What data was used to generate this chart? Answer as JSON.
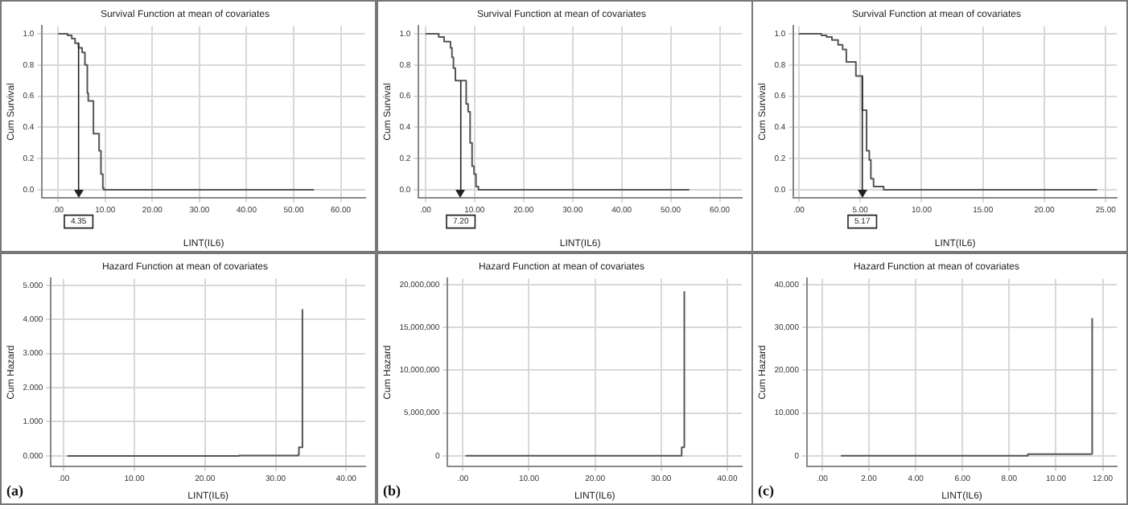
{
  "chart_data": [
    {
      "type": "step",
      "title": "Survival Function at mean of covariates",
      "xlabel": "LINT(IL6)",
      "ylabel": "Cum Survival",
      "grid": true,
      "series": [
        {
          "color": "#555555",
          "x": [
            0,
            1.1,
            2.0,
            2.9,
            3.6,
            4.35,
            5.1,
            5.7,
            6.2,
            6.4,
            7.5,
            8.7,
            9.1,
            9.5,
            9.7,
            54.3
          ],
          "values": [
            1.0,
            1.0,
            0.99,
            0.97,
            0.94,
            0.91,
            0.88,
            0.8,
            0.62,
            0.57,
            0.36,
            0.25,
            0.1,
            0.01,
            0.0,
            0.0
          ]
        }
      ],
      "xlim": [
        -3.4,
        65.2
      ],
      "xticks": [
        {
          "value": 0,
          "label": ".00"
        },
        {
          "value": 10,
          "label": "10.00"
        },
        {
          "value": 20,
          "label": "20.00"
        },
        {
          "value": 30,
          "label": "30.00"
        },
        {
          "value": 40,
          "label": "40.00"
        },
        {
          "value": 50,
          "label": "50.00"
        },
        {
          "value": 60,
          "label": "60.00"
        }
      ],
      "ylim": [
        -0.05,
        1.05
      ],
      "yticks": [
        {
          "value": 0,
          "label": "0.0"
        },
        {
          "value": 0.2,
          "label": "0.2"
        },
        {
          "value": 0.4,
          "label": "0.4"
        },
        {
          "value": 0.6,
          "label": "0.6"
        },
        {
          "value": 0.8,
          "label": "0.8"
        },
        {
          "value": 1,
          "label": "1.0"
        }
      ],
      "ref_lines": [
        {
          "axis": "x",
          "value": 4.35,
          "label": "4.35",
          "color": "#222222"
        }
      ]
    },
    {
      "type": "step",
      "title": "Survival Function at mean of covariates",
      "xlabel": "LINT(IL6)",
      "ylabel": "Cum Survival",
      "grid": true,
      "series": [
        {
          "color": "#555555",
          "x": [
            0,
            1.6,
            2.7,
            3.8,
            5.1,
            5.4,
            5.7,
            6.1,
            8.3,
            8.7,
            9.1,
            9.5,
            9.9,
            10.3,
            10.8,
            53.8
          ],
          "values": [
            1.0,
            1.0,
            0.98,
            0.95,
            0.91,
            0.85,
            0.78,
            0.7,
            0.55,
            0.5,
            0.3,
            0.15,
            0.1,
            0.02,
            0.0,
            0.0
          ]
        }
      ],
      "xlim": [
        -1.4,
        64.5
      ],
      "xticks": [
        {
          "value": 0,
          "label": ".00"
        },
        {
          "value": 10,
          "label": "10.00"
        },
        {
          "value": 20,
          "label": "20.00"
        },
        {
          "value": 30,
          "label": "30.00"
        },
        {
          "value": 40,
          "label": "40.00"
        },
        {
          "value": 50,
          "label": "50.00"
        },
        {
          "value": 60,
          "label": "60.00"
        }
      ],
      "ylim": [
        -0.05,
        1.05
      ],
      "yticks": [
        {
          "value": 0,
          "label": "0.0"
        },
        {
          "value": 0.2,
          "label": "0.2"
        },
        {
          "value": 0.4,
          "label": "0.4"
        },
        {
          "value": 0.6,
          "label": "0.6"
        },
        {
          "value": 0.8,
          "label": "0.8"
        },
        {
          "value": 1,
          "label": "1.0"
        }
      ],
      "ref_lines": [
        {
          "axis": "x",
          "value": 7.2,
          "label": "7.20",
          "color": "#222222"
        }
      ]
    },
    {
      "type": "step",
      "title": "Survival Function at mean of covariates",
      "xlabel": "LINT(IL6)",
      "ylabel": "Cum Survival",
      "grid": true,
      "series": [
        {
          "color": "#555555",
          "x": [
            0,
            0.96,
            1.83,
            2.26,
            2.7,
            3.2,
            3.57,
            3.87,
            4.65,
            5.17,
            5.52,
            5.74,
            5.87,
            6.09,
            6.91,
            24.3
          ],
          "values": [
            1.0,
            1.0,
            0.99,
            0.98,
            0.96,
            0.93,
            0.9,
            0.82,
            0.73,
            0.51,
            0.25,
            0.19,
            0.07,
            0.02,
            0.0,
            0.0
          ]
        }
      ],
      "xlim": [
        -0.43,
        25.9
      ],
      "xticks": [
        {
          "value": 0,
          "label": ".00"
        },
        {
          "value": 5,
          "label": "5.00"
        },
        {
          "value": 10,
          "label": "10.00"
        },
        {
          "value": 15,
          "label": "15.00"
        },
        {
          "value": 20,
          "label": "20.00"
        },
        {
          "value": 25,
          "label": "25.00"
        }
      ],
      "ylim": [
        -0.05,
        1.05
      ],
      "yticks": [
        {
          "value": 0,
          "label": "0.0"
        },
        {
          "value": 0.2,
          "label": "0.2"
        },
        {
          "value": 0.4,
          "label": "0.4"
        },
        {
          "value": 0.6,
          "label": "0.6"
        },
        {
          "value": 0.8,
          "label": "0.8"
        },
        {
          "value": 1,
          "label": "1.0"
        }
      ],
      "ref_lines": [
        {
          "axis": "x",
          "value": 5.17,
          "label": "5.17",
          "color": "#222222"
        }
      ]
    },
    {
      "type": "step",
      "title": "Hazard Function at mean of covariates",
      "xlabel": "LINT(IL6)",
      "ylabel": "Cum Hazard",
      "grid": true,
      "series": [
        {
          "color": "#555555",
          "x": [
            0.5,
            24.8,
            33.2,
            33.3,
            33.8
          ],
          "values": [
            0,
            0.01,
            0.03,
            0.25,
            4.3
          ]
        }
      ],
      "xlim": [
        -1.8,
        42.7
      ],
      "xticks": [
        {
          "value": 0,
          "label": ".00"
        },
        {
          "value": 10,
          "label": "10.00"
        },
        {
          "value": 20,
          "label": "20.00"
        },
        {
          "value": 30,
          "label": "30.00"
        },
        {
          "value": 40,
          "label": "40.00"
        }
      ],
      "ylim": [
        -0.3,
        5.2
      ],
      "yticks": [
        {
          "value": 0,
          "label": "0.000"
        },
        {
          "value": 1,
          "label": "1.000"
        },
        {
          "value": 2,
          "label": "2.000"
        },
        {
          "value": 3,
          "label": "3.000"
        },
        {
          "value": 4,
          "label": "4.000"
        },
        {
          "value": 5,
          "label": "5.000"
        }
      ],
      "annotations": [
        "(a)"
      ]
    },
    {
      "type": "step",
      "title": "Hazard Function at mean of covariates",
      "xlabel": "LINT(IL6)",
      "ylabel": "Cum Hazard",
      "grid": true,
      "series": [
        {
          "color": "#555555",
          "x": [
            0.4,
            24,
            33.1,
            33.5
          ],
          "values": [
            0,
            0,
            1000000,
            19200000
          ]
        }
      ],
      "xlim": [
        -2.3,
        42.2
      ],
      "xticks": [
        {
          "value": 0,
          "label": ".00"
        },
        {
          "value": 10,
          "label": "10.00"
        },
        {
          "value": 20,
          "label": "20.00"
        },
        {
          "value": 30,
          "label": "30.00"
        },
        {
          "value": 40,
          "label": "40.00"
        }
      ],
      "ylim": [
        -1200000,
        20700000
      ],
      "yticks": [
        {
          "value": 0,
          "label": "0"
        },
        {
          "value": 5000000,
          "label": "5,000,000"
        },
        {
          "value": 10000000,
          "label": "10,000,000"
        },
        {
          "value": 15000000,
          "label": "15,000,000"
        },
        {
          "value": 20000000,
          "label": "20,000,000"
        }
      ],
      "annotations": [
        "(b)"
      ]
    },
    {
      "type": "step",
      "title": "Hazard Function at mean of covariates",
      "xlabel": "LINT(IL6)",
      "ylabel": "Cum Hazard",
      "grid": true,
      "series": [
        {
          "color": "#555555",
          "x": [
            0.8,
            8.8,
            11.53,
            11.55
          ],
          "values": [
            0,
            400,
            500,
            32200
          ]
        }
      ],
      "xlim": [
        -0.65,
        12.6
      ],
      "xticks": [
        {
          "value": 0,
          "label": ".00"
        },
        {
          "value": 2,
          "label": "2.00"
        },
        {
          "value": 4,
          "label": "4.00"
        },
        {
          "value": 6,
          "label": "6.00"
        },
        {
          "value": 8,
          "label": "8.00"
        },
        {
          "value": 10,
          "label": "10.00"
        },
        {
          "value": 12,
          "label": "12.00"
        }
      ],
      "ylim": [
        -2400,
        41400
      ],
      "yticks": [
        {
          "value": 0,
          "label": "0"
        },
        {
          "value": 10000,
          "label": "10,000"
        },
        {
          "value": 20000,
          "label": "20,000"
        },
        {
          "value": 30000,
          "label": "30,000"
        },
        {
          "value": 40000,
          "label": "40,000"
        }
      ],
      "annotations": [
        "(c)"
      ]
    }
  ]
}
